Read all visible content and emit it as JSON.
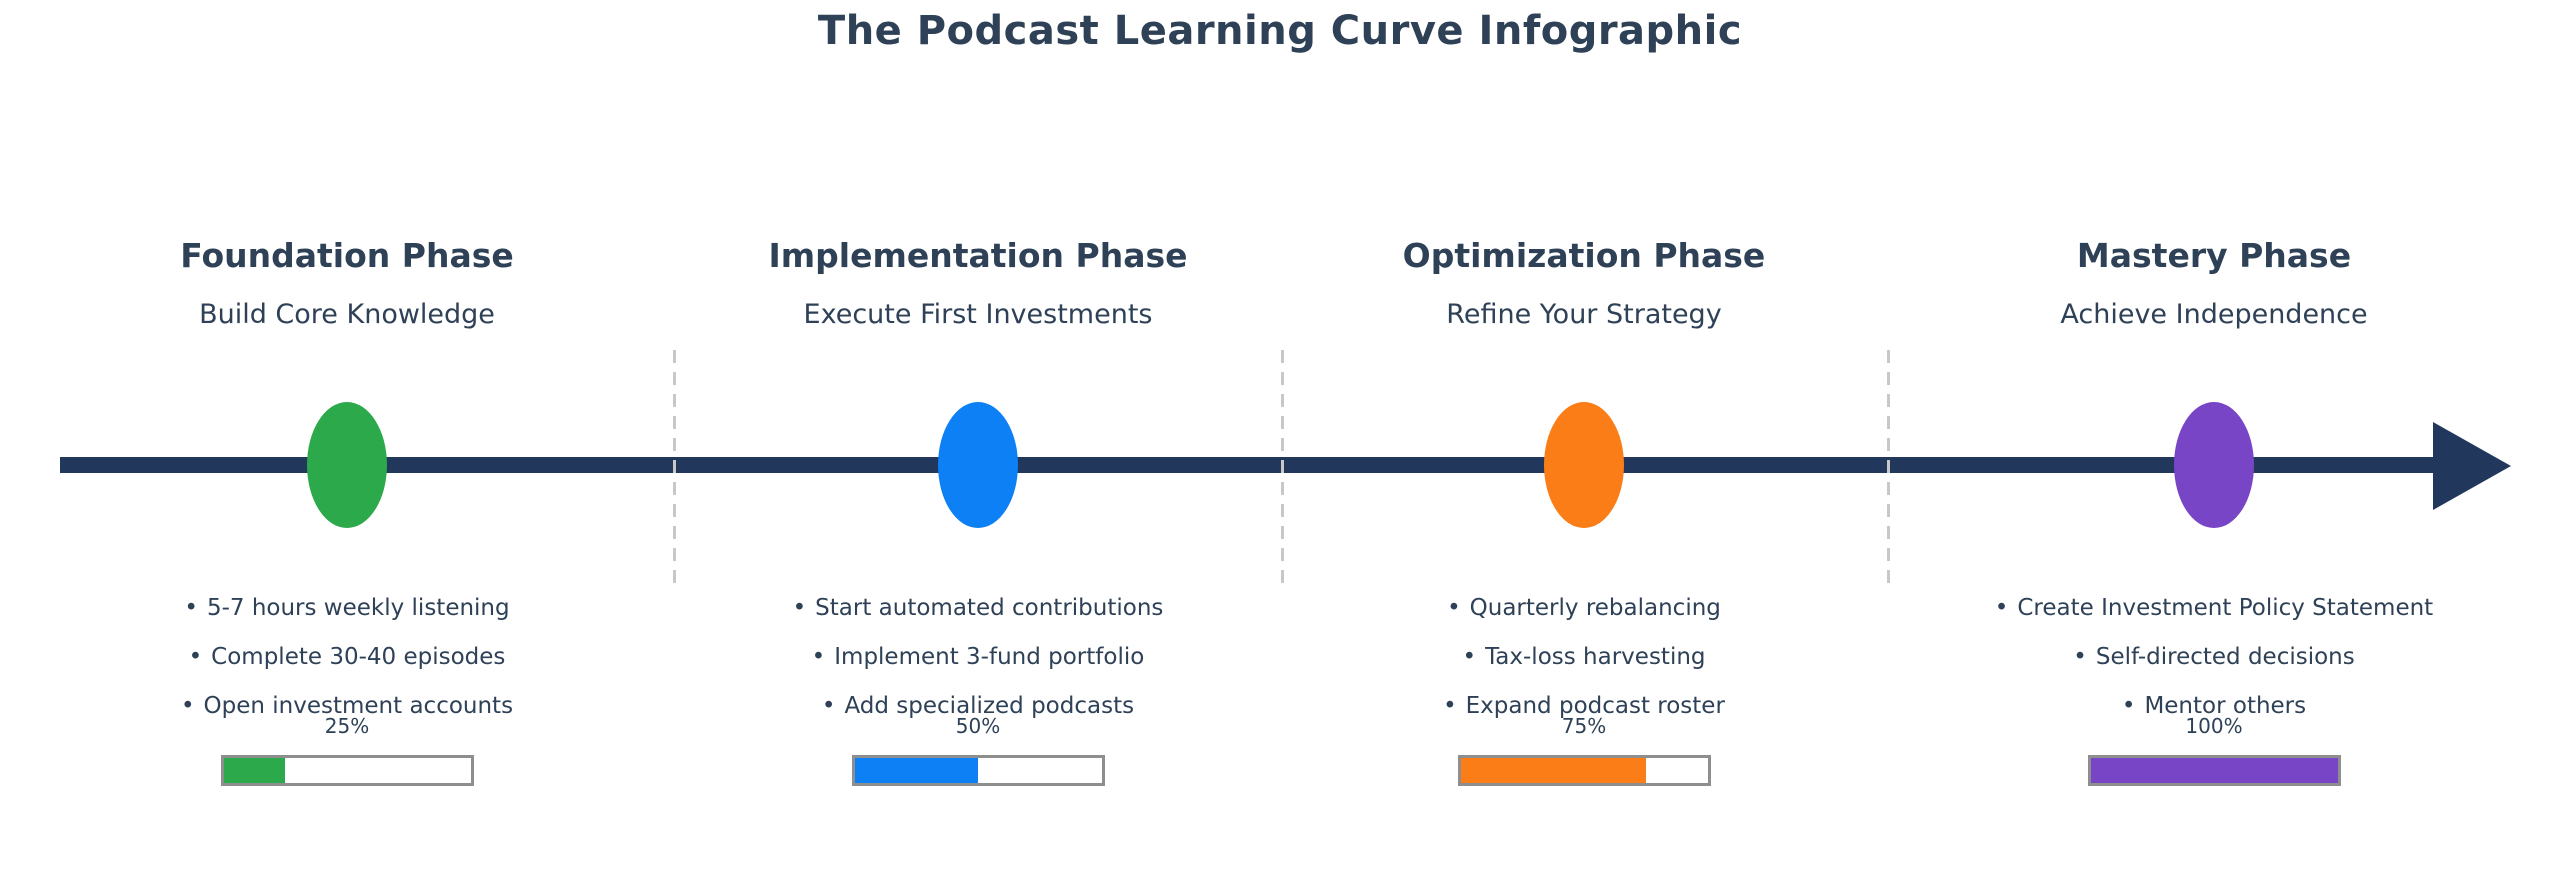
{
  "title": "The Podcast Learning Curve Infographic",
  "ui": {
    "bullet_char": "•"
  },
  "colors": {
    "background": "#ffffff",
    "body_text": "#2e4157",
    "timeline": "#21385c",
    "separator": "#c8c8c8",
    "bar_border": "#8e8e8e",
    "bar_background": "#ffffff"
  },
  "phases": [
    {
      "name": "Foundation Phase",
      "subtitle": "Build Core Knowledge",
      "color": "#2ca94a",
      "bullets": [
        "5-7 hours weekly listening",
        "Complete 30-40 episodes",
        "Open investment accounts"
      ],
      "progress_label": "25%",
      "progress_pct": 25
    },
    {
      "name": "Implementation Phase",
      "subtitle": "Execute First Investments",
      "color": "#0d80f5",
      "bullets": [
        "Start automated contributions",
        "Implement 3-fund portfolio",
        "Add specialized podcasts"
      ],
      "progress_label": "50%",
      "progress_pct": 50
    },
    {
      "name": "Optimization Phase",
      "subtitle": "Refine Your Strategy",
      "color": "#fb7d17",
      "bullets": [
        "Quarterly rebalancing",
        "Tax-loss harvesting",
        "Expand podcast roster"
      ],
      "progress_label": "75%",
      "progress_pct": 75
    },
    {
      "name": "Mastery Phase",
      "subtitle": "Achieve Independence",
      "color": "#7745c6",
      "bullets": [
        "Create Investment Policy Statement",
        "Self-directed decisions",
        "Mentor others"
      ],
      "progress_label": "100%",
      "progress_pct": 100
    }
  ]
}
